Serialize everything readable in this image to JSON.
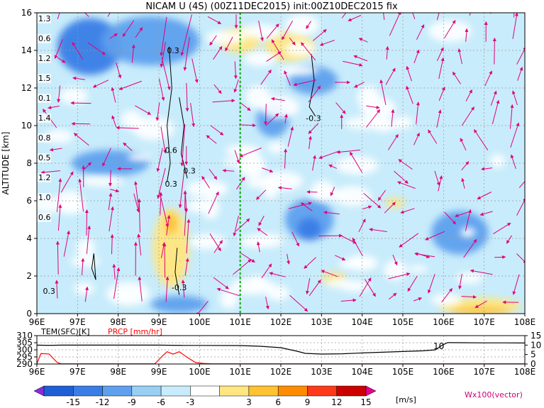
{
  "title": "NICAM U (4S) (00Z11DEC2015) init:00Z10DEC2015 fix",
  "chart_data": [
    {
      "type": "heatmap",
      "title": "NICAM U (4S) (00Z11DEC2015) init:00Z10DEC2015 fix",
      "ylabel": "ALTITUDE [km]",
      "xlabel": "",
      "x_ticks": [
        "96E",
        "97E",
        "98E",
        "99E",
        "100E",
        "101E",
        "102E",
        "103E",
        "104E",
        "105E",
        "106E",
        "107E",
        "108E"
      ],
      "y_ticks": [
        "0",
        "2",
        "4",
        "6",
        "8",
        "10",
        "12",
        "14",
        "16"
      ],
      "xlim": [
        96,
        108
      ],
      "ylim": [
        0,
        16
      ],
      "grid": true,
      "reference_line_lon": 101,
      "contour_labels": [
        {
          "text": "0.3",
          "lon": 99.35,
          "alt": 14.0
        },
        {
          "text": "-0.3",
          "lon": 102.8,
          "alt": 10.4
        },
        {
          "text": "0.6",
          "lon": 99.3,
          "alt": 8.7
        },
        {
          "text": "0.3",
          "lon": 99.75,
          "alt": 7.6
        },
        {
          "text": "0.3",
          "lon": 99.3,
          "alt": 6.9
        },
        {
          "text": "-0.3",
          "lon": 99.5,
          "alt": 1.4
        },
        {
          "text": "0.3",
          "lon": 96.3,
          "alt": 1.2
        }
      ],
      "left_edge_labels": [
        "1.3",
        "0.6",
        "1.2",
        "1.5",
        "0.1",
        "1.4",
        "0.8",
        "0.5",
        "1.2",
        "1.0",
        "0.6"
      ],
      "features": [
        {
          "kind": "negative",
          "value": -9,
          "lon": 97.3,
          "alt": 14.2,
          "width": 1.6,
          "height": 3.0
        },
        {
          "kind": "negative",
          "value": -6,
          "lon": 98.8,
          "alt": 14.5,
          "width": 2.4,
          "height": 2.6
        },
        {
          "kind": "negative",
          "value": -6,
          "lon": 97.8,
          "alt": 8.0,
          "width": 1.9,
          "height": 1.4
        },
        {
          "kind": "negative",
          "value": -6,
          "lon": 102.7,
          "alt": 5.0,
          "width": 1.2,
          "height": 2.2
        },
        {
          "kind": "negative",
          "value": -9,
          "lon": 102.7,
          "alt": 4.5,
          "width": 0.6,
          "height": 1.2
        },
        {
          "kind": "negative",
          "value": -6,
          "lon": 102.8,
          "alt": 12.4,
          "width": 1.2,
          "height": 1.5
        },
        {
          "kind": "negative",
          "value": -6,
          "lon": 101.8,
          "alt": 10.3,
          "width": 0.8,
          "height": 1.8
        },
        {
          "kind": "negative",
          "value": -6,
          "lon": 99.5,
          "alt": 0.5,
          "width": 1.4,
          "height": 0.9
        },
        {
          "kind": "negative",
          "value": -6,
          "lon": 106.4,
          "alt": 4.3,
          "width": 1.4,
          "height": 2.3
        },
        {
          "kind": "positive",
          "value": 3,
          "lon": 101.0,
          "alt": 14.5,
          "width": 1.0,
          "height": 1.3
        },
        {
          "kind": "positive",
          "value": 3,
          "lon": 102.2,
          "alt": 14.2,
          "width": 1.2,
          "height": 1.6
        },
        {
          "kind": "positive",
          "value": 3,
          "lon": 99.3,
          "alt": 3.5,
          "width": 0.9,
          "height": 4.2
        },
        {
          "kind": "positive",
          "value": 6,
          "lon": 99.3,
          "alt": 4.8,
          "width": 0.3,
          "height": 1.2
        },
        {
          "kind": "positive",
          "value": 3,
          "lon": 106.9,
          "alt": 0.4,
          "width": 2.0,
          "height": 0.9
        },
        {
          "kind": "positive",
          "value": 6,
          "lon": 106.9,
          "alt": 0.15,
          "width": 1.5,
          "height": 0.4
        },
        {
          "kind": "positive",
          "value": 3,
          "lon": 104.8,
          "alt": 5.9,
          "width": 0.5,
          "height": 0.5
        },
        {
          "kind": "positive",
          "value": 3,
          "lon": 103.3,
          "alt": 1.9,
          "width": 0.6,
          "height": 0.6
        }
      ],
      "vector_label": "Wx100(vector)",
      "colorbar": {
        "ticks": [
          "-15",
          "-12",
          "-9",
          "-6",
          "-3",
          "3",
          "6",
          "9",
          "12",
          "15"
        ],
        "unit": "[m/s]",
        "colors": [
          "#8a2be2",
          "#1f5fd6",
          "#3a7de6",
          "#5ea0ee",
          "#99cff5",
          "#c8ecfb",
          "#ffffff",
          "#ffe680",
          "#ffc233",
          "#ff8c00",
          "#ff3a1a",
          "#cc0000",
          "#e8008a"
        ]
      }
    },
    {
      "type": "line",
      "title": "",
      "x_ticks": [
        "96E",
        "97E",
        "98E",
        "99E",
        "100E",
        "101E",
        "102E",
        "103E",
        "104E",
        "105E",
        "106E",
        "107E",
        "108E"
      ],
      "left_axis_label": "TEM(SFC)[K]",
      "right_axis_label": "PRCP [mm/hr]",
      "left_ticks": [
        "290",
        "295",
        "300",
        "305",
        "310"
      ],
      "right_ticks": [
        "0",
        "5",
        "10",
        "15"
      ],
      "annotation": "10",
      "series": [
        {
          "name": "TEM(SFC)[K]",
          "color": "#000000",
          "x": [
            96,
            96.2,
            96.4,
            96.6,
            97,
            98,
            99,
            99.3,
            99.6,
            100,
            101,
            101.5,
            102,
            102.4,
            102.6,
            103,
            103.5,
            104,
            104.5,
            105,
            105.5,
            105.8,
            105.95,
            106.1,
            106.5,
            107,
            107.5,
            108
          ],
          "values": [
            303.3,
            303.2,
            303.2,
            303.3,
            303.3,
            303.3,
            303.3,
            303.2,
            303.1,
            303.1,
            303.0,
            302.5,
            301.5,
            299.0,
            297.5,
            297.0,
            297.2,
            297.8,
            298.3,
            298.8,
            299.3,
            300.0,
            303.0,
            305.1,
            305.0,
            304.9,
            304.9,
            304.8
          ]
        },
        {
          "name": "PRCP [mm/hr]",
          "color": "#ff0000",
          "x": [
            96,
            96.1,
            96.3,
            96.5,
            96.6,
            97,
            98,
            98.9,
            99.1,
            99.2,
            99.35,
            99.5,
            99.7,
            99.9,
            100.1,
            100.3,
            101,
            102,
            103,
            104,
            105,
            106,
            107,
            108
          ],
          "values": [
            0.2,
            5.5,
            5.3,
            0.8,
            0.1,
            0.1,
            0.1,
            0.1,
            4.5,
            6.5,
            5.2,
            6.5,
            3.5,
            0.8,
            0.3,
            0.1,
            0.1,
            0.1,
            0.1,
            0.1,
            0.1,
            0.1,
            0.1,
            0.1
          ]
        }
      ]
    }
  ]
}
